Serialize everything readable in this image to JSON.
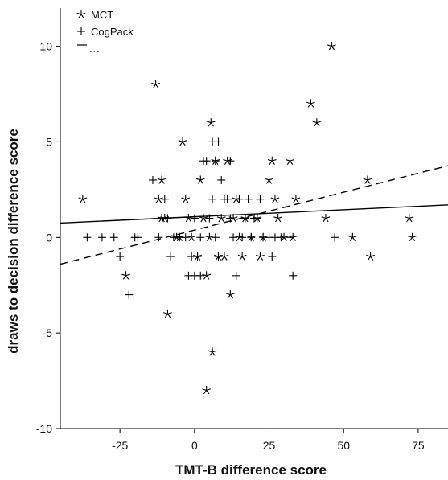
{
  "chart_data": {
    "type": "scatter",
    "xlabel": "TMT-B difference score",
    "ylabel": "draws to decision difference score",
    "xlim": [
      -45,
      85
    ],
    "ylim": [
      -10,
      12
    ],
    "x_ticks": [
      "-25",
      "0",
      "25",
      "50",
      "75"
    ],
    "y_ticks": [
      "-10",
      "-5",
      "0",
      "5",
      "10"
    ],
    "legend": {
      "position": "top-left",
      "entries": [
        "MCT",
        "CogPack"
      ]
    },
    "series": [
      {
        "name": "MCT",
        "marker": "star",
        "points": [
          [
            -37.5,
            2
          ],
          [
            -23,
            -2
          ],
          [
            -13,
            8
          ],
          [
            -12,
            2
          ],
          [
            -11,
            3
          ],
          [
            -11,
            1
          ],
          [
            -10,
            1
          ],
          [
            -9,
            -4
          ],
          [
            -6,
            0
          ],
          [
            -5,
            0
          ],
          [
            -4,
            5
          ],
          [
            -3,
            2
          ],
          [
            -2,
            1
          ],
          [
            -1,
            0
          ],
          [
            1,
            -1
          ],
          [
            2,
            3
          ],
          [
            3,
            1
          ],
          [
            4,
            -2
          ],
          [
            5,
            0
          ],
          [
            5.5,
            6
          ],
          [
            6,
            -6
          ],
          [
            4,
            -8
          ],
          [
            7,
            4
          ],
          [
            8,
            -1
          ],
          [
            9,
            1
          ],
          [
            10,
            -1
          ],
          [
            11,
            4
          ],
          [
            12,
            -3
          ],
          [
            13,
            1
          ],
          [
            14,
            2
          ],
          [
            15,
            0
          ],
          [
            16,
            -1
          ],
          [
            17,
            1
          ],
          [
            19,
            0
          ],
          [
            21,
            1
          ],
          [
            22,
            -1
          ],
          [
            23,
            0
          ],
          [
            25,
            3
          ],
          [
            26,
            4
          ],
          [
            27,
            2
          ],
          [
            28,
            1
          ],
          [
            30,
            0
          ],
          [
            32,
            4
          ],
          [
            33,
            0
          ],
          [
            34,
            2
          ],
          [
            39,
            7
          ],
          [
            41,
            6
          ],
          [
            44,
            1
          ],
          [
            46,
            10
          ],
          [
            53,
            0
          ],
          [
            58,
            3
          ],
          [
            59,
            -1
          ],
          [
            72,
            1
          ],
          [
            73,
            0
          ]
        ]
      },
      {
        "name": "CogPack",
        "marker": "plus",
        "points": [
          [
            -36,
            0
          ],
          [
            -31,
            0
          ],
          [
            -27,
            0
          ],
          [
            -25,
            -1
          ],
          [
            -22,
            -3
          ],
          [
            -20,
            0
          ],
          [
            -19,
            0
          ],
          [
            -14,
            3
          ],
          [
            -12,
            0
          ],
          [
            -10,
            2
          ],
          [
            -9,
            1
          ],
          [
            -8,
            -1
          ],
          [
            -7,
            0
          ],
          [
            -5,
            0
          ],
          [
            -3,
            0
          ],
          [
            -2,
            -2
          ],
          [
            -1,
            -1
          ],
          [
            0,
            -2
          ],
          [
            0,
            1
          ],
          [
            1,
            -1
          ],
          [
            2,
            -2
          ],
          [
            2,
            0
          ],
          [
            3,
            4
          ],
          [
            4,
            4
          ],
          [
            5,
            1
          ],
          [
            6,
            5
          ],
          [
            6,
            2
          ],
          [
            7,
            4
          ],
          [
            7,
            0
          ],
          [
            8,
            5
          ],
          [
            8,
            -1
          ],
          [
            9,
            3
          ],
          [
            10,
            2
          ],
          [
            11,
            2
          ],
          [
            12,
            4
          ],
          [
            12,
            1
          ],
          [
            13,
            0
          ],
          [
            14,
            -2
          ],
          [
            15,
            2
          ],
          [
            16,
            0
          ],
          [
            17,
            1
          ],
          [
            18,
            2
          ],
          [
            19,
            0
          ],
          [
            20,
            1
          ],
          [
            21,
            1
          ],
          [
            22,
            2
          ],
          [
            23,
            0
          ],
          [
            25,
            0
          ],
          [
            26,
            -1
          ],
          [
            27,
            0
          ],
          [
            29,
            0
          ],
          [
            32,
            0
          ],
          [
            33,
            -2
          ],
          [
            47,
            0
          ]
        ]
      }
    ],
    "fit_lines": [
      {
        "series": "MCT",
        "style": "solid",
        "x": [
          -45,
          85
        ],
        "y": [
          0.75,
          1.7
        ]
      },
      {
        "series": "CogPack",
        "style": "dashed",
        "x": [
          -45,
          85
        ],
        "y": [
          -1.4,
          3.75
        ]
      }
    ]
  }
}
